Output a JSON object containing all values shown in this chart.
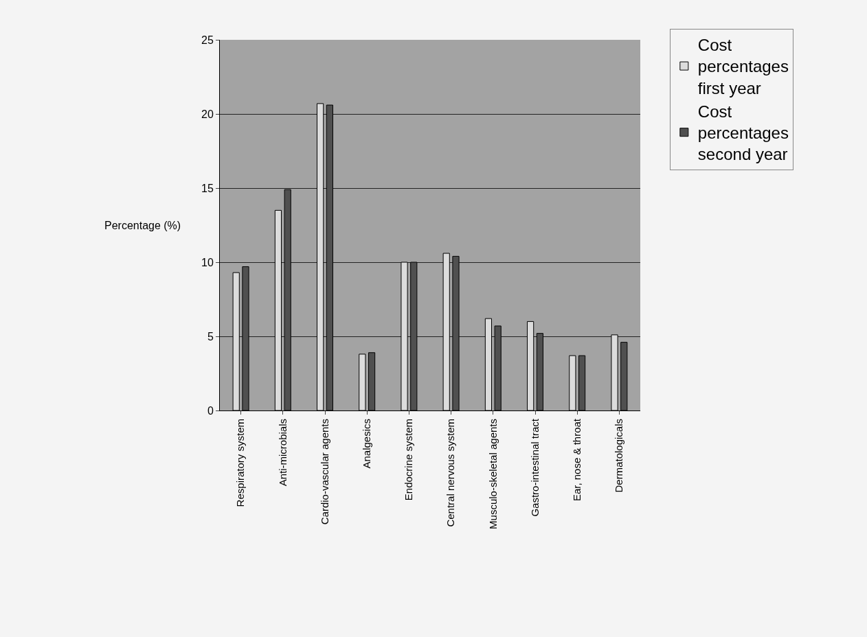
{
  "chart_data": {
    "type": "bar",
    "ylabel": "Percentage (%)",
    "categories": [
      "Respiratory system",
      "Anti-microbials",
      "Cardio-vascular agents",
      "Analgesics",
      "Endocrine system",
      "Central nervous system",
      "Musculo-skeletal agents",
      "Gastro-intestinal tract",
      "Ear, nose & throat",
      "Dermatologicals"
    ],
    "series": [
      {
        "name": "Cost percentages first year",
        "color": "#dcdcdc",
        "values": [
          9.3,
          13.5,
          20.7,
          3.8,
          10.0,
          10.6,
          6.2,
          6.0,
          3.7,
          5.1
        ]
      },
      {
        "name": "Cost percentages second year",
        "color": "#505050",
        "values": [
          9.7,
          14.9,
          20.6,
          3.9,
          10.0,
          10.4,
          5.7,
          5.2,
          3.7,
          4.6
        ]
      }
    ],
    "ylim": [
      0,
      25
    ],
    "yticks": [
      0,
      5,
      10,
      15,
      20,
      25
    ],
    "grid": "y",
    "legend": "top right"
  }
}
